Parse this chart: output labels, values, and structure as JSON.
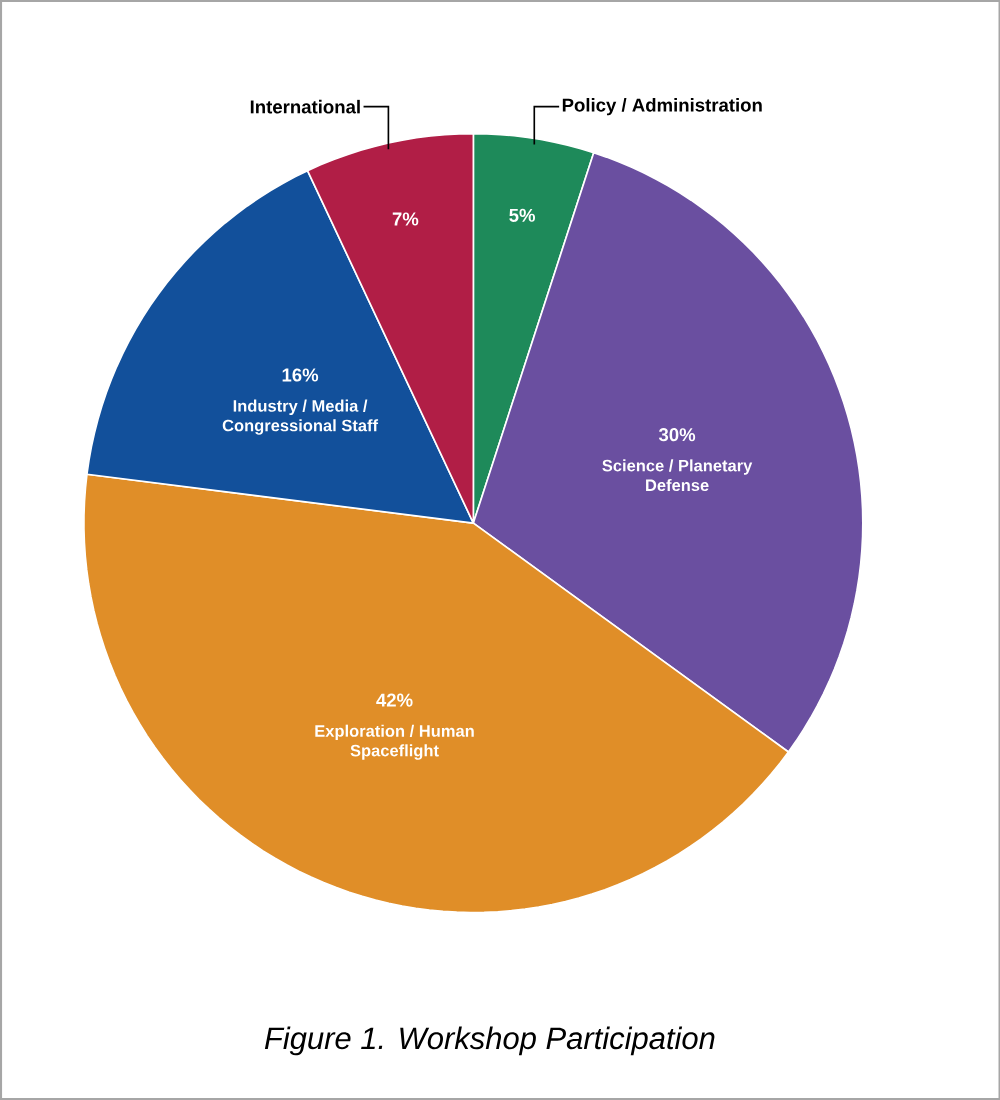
{
  "chart_data": {
    "type": "pie",
    "categories": [
      "Policy / Administration",
      "Science / Planetary Defense",
      "Exploration / Human Spaceflight",
      "Industry / Media / Congressional Staff",
      "International"
    ],
    "values": [
      5,
      30,
      42,
      16,
      7
    ],
    "value_labels": [
      "5%",
      "30%",
      "42%",
      "16%",
      "7%"
    ],
    "colors": [
      "#1e8a5a",
      "#6a4fa0",
      "#e08e28",
      "#12509b",
      "#b11e46"
    ],
    "annotations": [
      "*Figure 1. Workshop Participation*"
    ]
  }
}
